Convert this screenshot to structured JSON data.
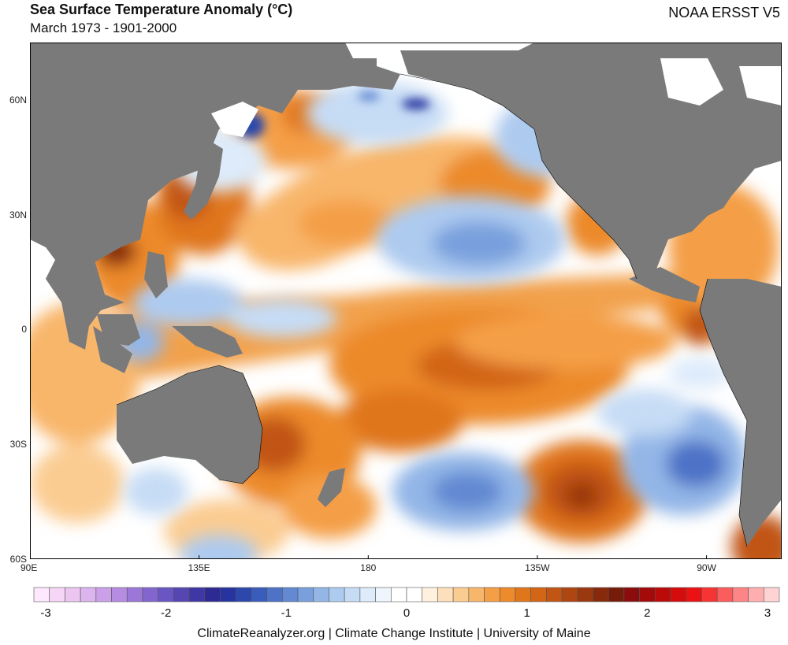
{
  "header": {
    "title": "Sea Surface Temperature Anomaly (°C)",
    "subtitle": "March 1973 - 1901-2000",
    "source": "NOAA ERSST V5"
  },
  "map": {
    "region": "Pacific Ocean",
    "lon_range": [
      90,
      290
    ],
    "lat_range": [
      -60,
      75
    ],
    "x_ticks": [
      {
        "lon": 90,
        "label": "90E"
      },
      {
        "lon": 135,
        "label": "135E"
      },
      {
        "lon": 180,
        "label": "180"
      },
      {
        "lon": 225,
        "label": "135W"
      },
      {
        "lon": 270,
        "label": "90W"
      }
    ],
    "y_ticks": [
      {
        "lat": 60,
        "label": "60N"
      },
      {
        "lat": 30,
        "label": "30N"
      },
      {
        "lat": 0,
        "label": "0"
      },
      {
        "lat": -30,
        "label": "30S"
      },
      {
        "lat": -60,
        "label": "60S"
      }
    ],
    "land_color": "#7a7a7a",
    "anomaly_features": [
      {
        "name": "equatorial-warm-band",
        "type": "warm",
        "value": 1.0
      },
      {
        "name": "central-south-pacific-warm",
        "type": "warm",
        "value": 1.4
      },
      {
        "name": "south-east-pacific-warm-core",
        "type": "warm",
        "value": 1.6
      },
      {
        "name": "north-pacific-warm-arc",
        "type": "warm",
        "value": 0.8
      },
      {
        "name": "tasman-sea-warm",
        "type": "warm",
        "value": 1.2
      },
      {
        "name": "south-china-sea-warm",
        "type": "warm",
        "value": 1.8
      },
      {
        "name": "sea-of-japan-warm",
        "type": "warm",
        "value": 1.0
      },
      {
        "name": "north-pacific-cool-patch",
        "type": "cool",
        "value": -0.9
      },
      {
        "name": "south-pacific-cool-patch",
        "type": "cool",
        "value": -1.0
      },
      {
        "name": "southeast-pacific-cool-patch",
        "type": "cool",
        "value": -1.3
      },
      {
        "name": "sea-of-okhotsk-cool",
        "type": "cool",
        "value": -1.8
      },
      {
        "name": "bering-sea-cool",
        "type": "cool",
        "value": -1.7
      },
      {
        "name": "west-pacific-cool",
        "type": "cool",
        "value": -0.6
      },
      {
        "name": "gulf-of-alaska-cool",
        "type": "cool",
        "value": -0.5
      }
    ]
  },
  "colorbar": {
    "min": -3,
    "max": 3,
    "labels": [
      "-3",
      "-2",
      "-1",
      "0",
      "1",
      "2",
      "3"
    ],
    "colors": [
      "#fde8fd",
      "#f6d6f6",
      "#ecc6f1",
      "#dcb4ee",
      "#cba0e8",
      "#b58ce1",
      "#9b78d8",
      "#8266ce",
      "#6a56c2",
      "#5546b2",
      "#3f37a3",
      "#2d2a94",
      "#27349f",
      "#2c48ac",
      "#3a5cba",
      "#4d72c6",
      "#6289d2",
      "#79a0dd",
      "#93b6e7",
      "#adcaef",
      "#c6dcf5",
      "#ddebfa",
      "#eef5fc",
      "#ffffff",
      "#ffffff",
      "#fff1dd",
      "#fde0bb",
      "#fbcc92",
      "#f8b66b",
      "#f49f46",
      "#ec8a2c",
      "#e0761c",
      "#d26516",
      "#c15514",
      "#ae4612",
      "#9a3810",
      "#872a0c",
      "#761c08",
      "#8b0c0c",
      "#a30a0a",
      "#bb0a0a",
      "#d40c0c",
      "#ea1212",
      "#f73434",
      "#fb5c5c",
      "#fd8585",
      "#feaeae",
      "#ffd3d3"
    ]
  },
  "footer": {
    "credit": "ClimateReanalyzer.org | Climate Change Institute | University of Maine"
  }
}
